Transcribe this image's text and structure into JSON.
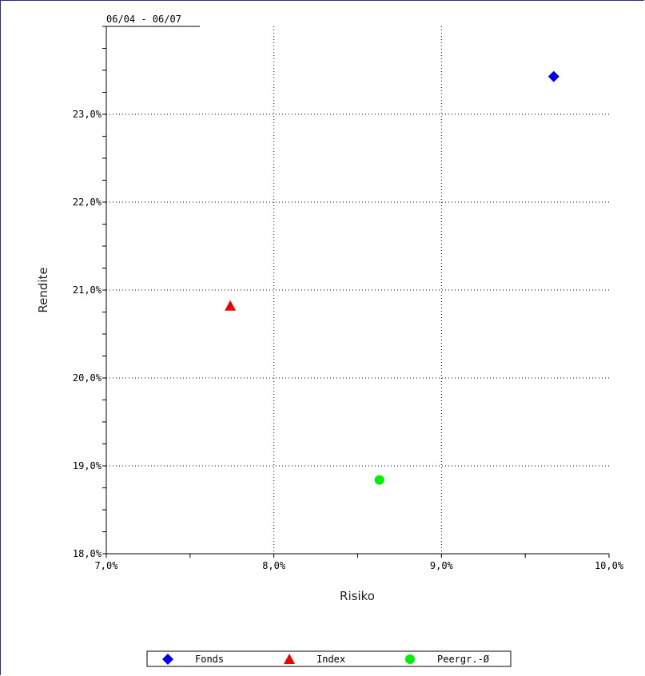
{
  "chart_data": {
    "type": "scatter",
    "title": "06/04 - 06/07",
    "xlabel": "Risiko",
    "ylabel": "Rendite",
    "xlim": [
      7.0,
      10.0
    ],
    "ylim": [
      18.0,
      24.0
    ],
    "x_ticks": [
      7.0,
      8.0,
      9.0,
      10.0
    ],
    "x_tick_labels": [
      "7,0%",
      "8,0%",
      "9,0%",
      "10,0%"
    ],
    "y_ticks": [
      18.0,
      19.0,
      20.0,
      21.0,
      22.0,
      23.0
    ],
    "y_tick_labels": [
      "18,0%",
      "19,0%",
      "20,0%",
      "21,0%",
      "22,0%",
      "23,0%"
    ],
    "grid": true,
    "legend_position": "bottom",
    "series": [
      {
        "name": "Fonds",
        "marker": "diamond",
        "color": "#0000ee",
        "x": 9.67,
        "y": 23.43
      },
      {
        "name": "Index",
        "marker": "triangle",
        "color": "#ee0000",
        "x": 7.74,
        "y": 20.82
      },
      {
        "name": "Peergr.-Ø",
        "marker": "circle",
        "color": "#00ee00",
        "x": 8.63,
        "y": 18.84
      }
    ]
  }
}
